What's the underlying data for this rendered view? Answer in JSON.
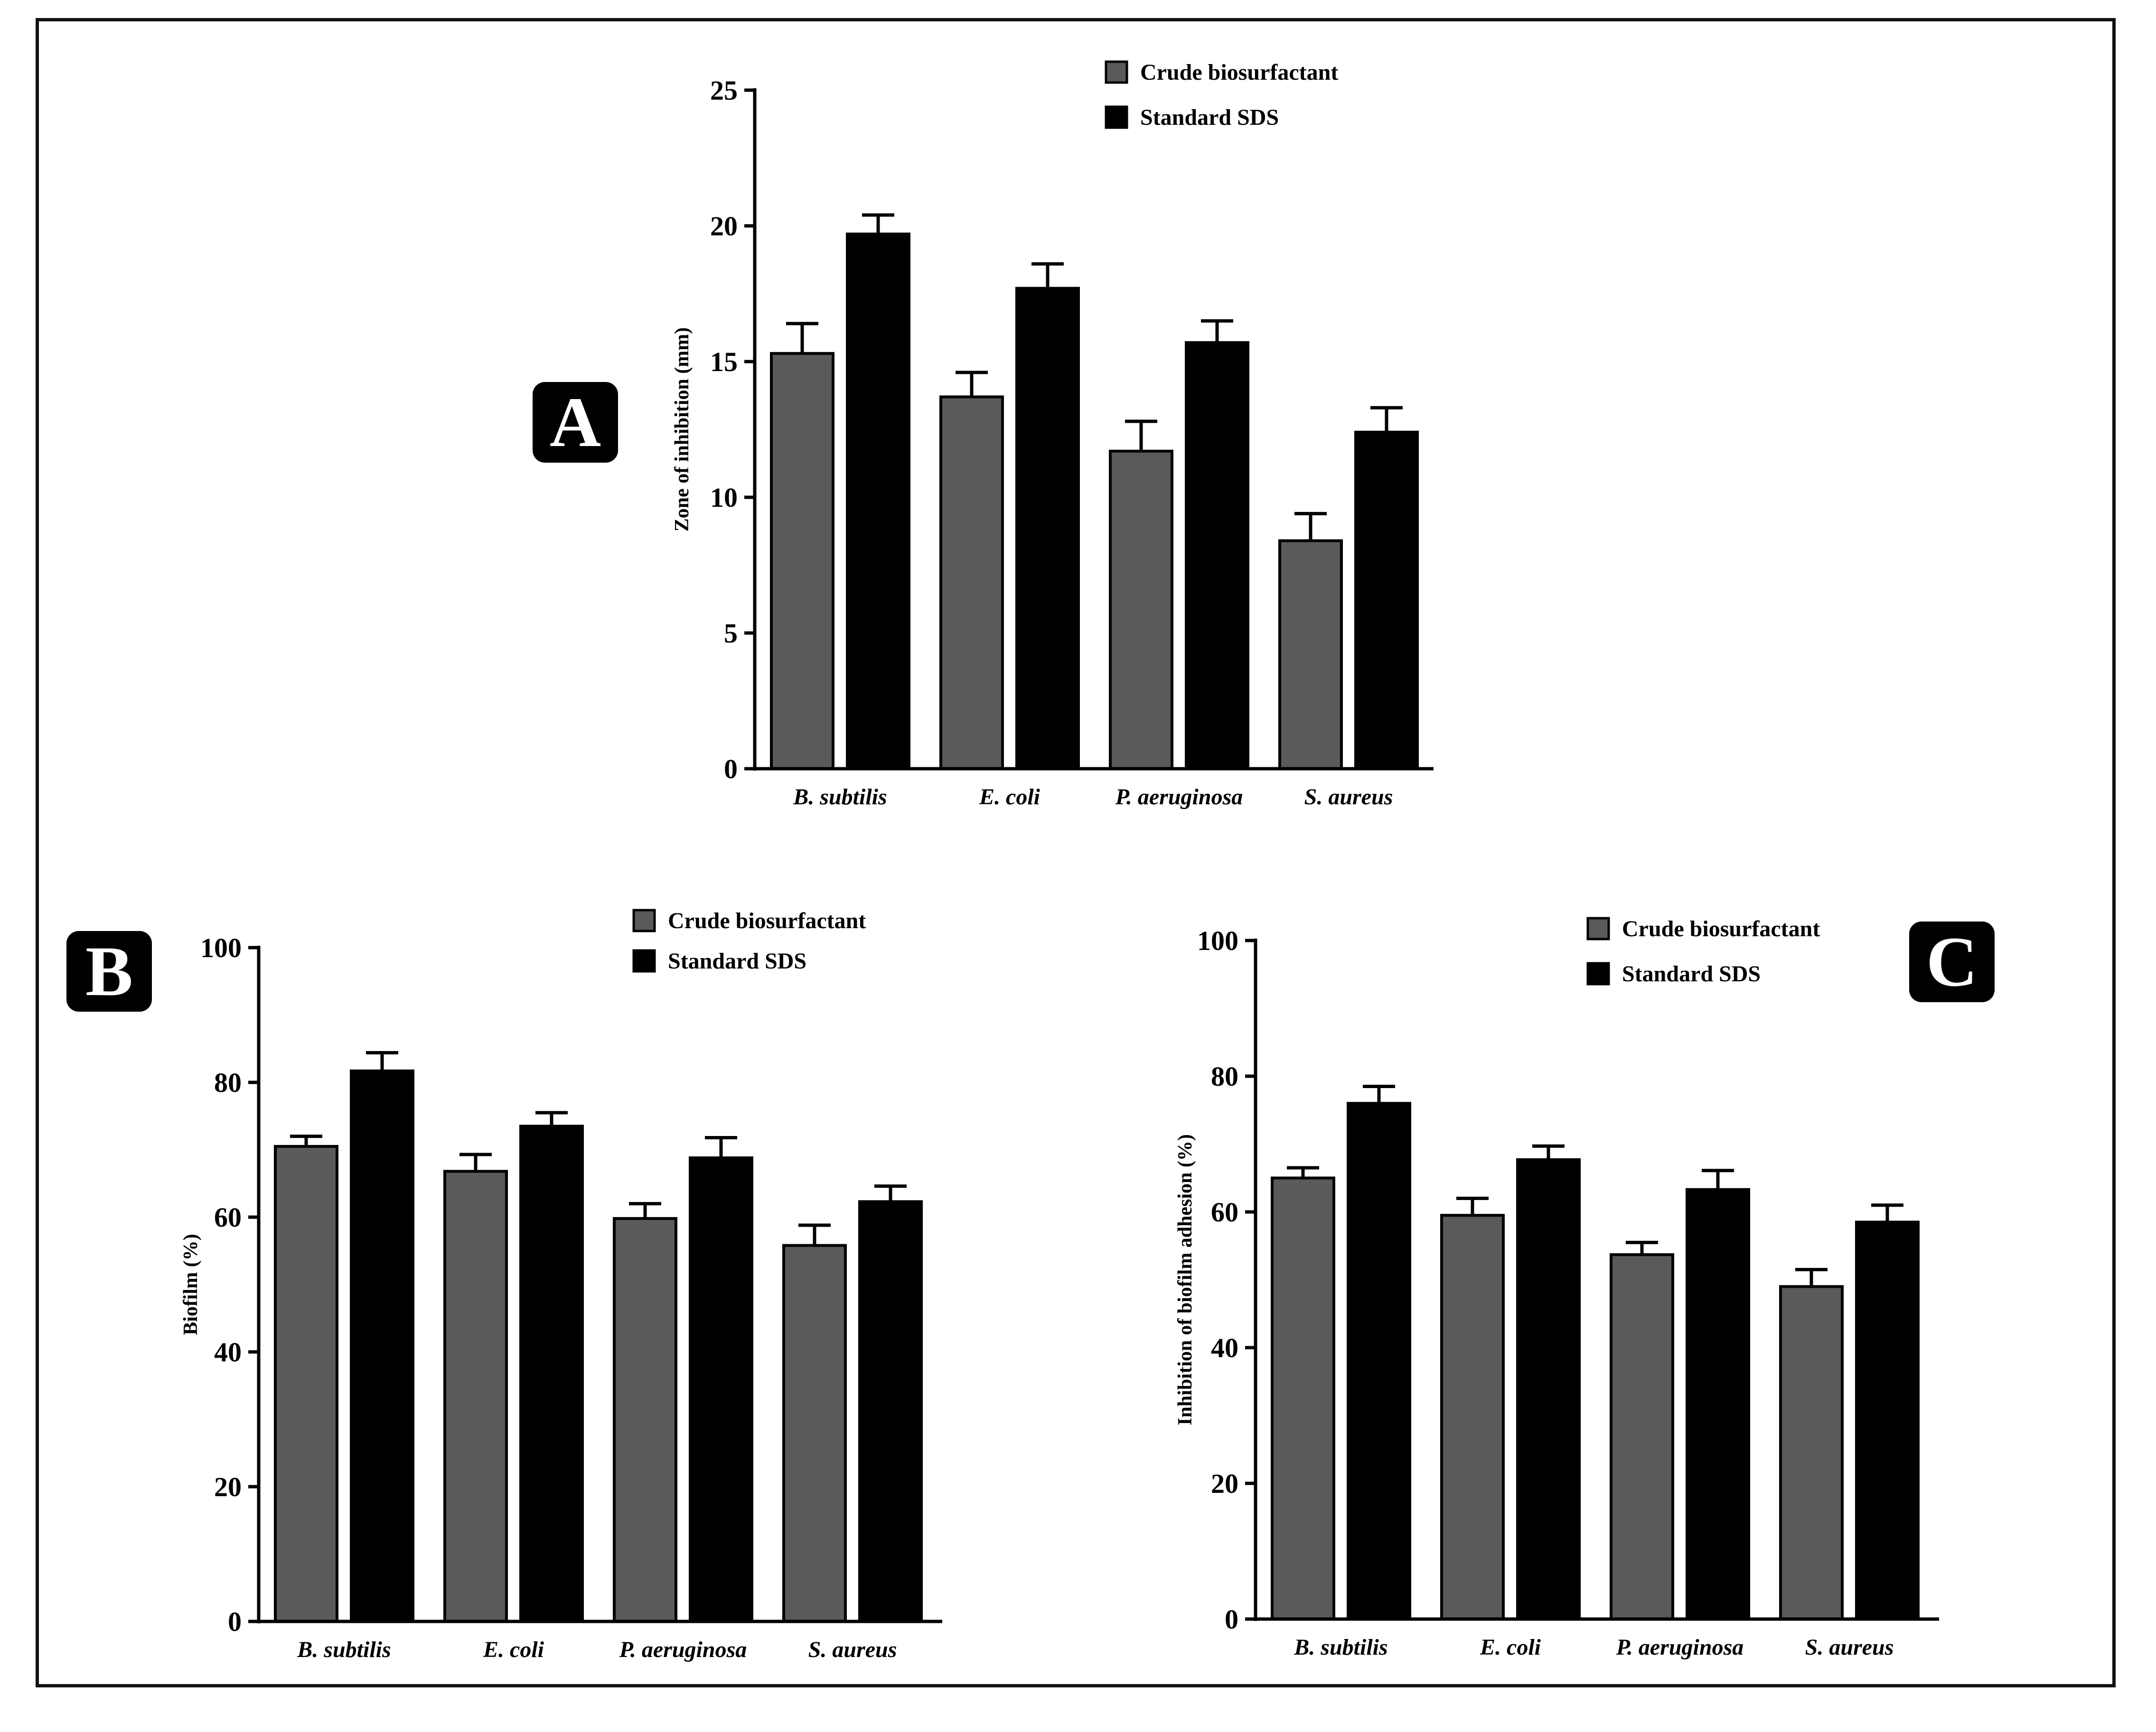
{
  "figure": {
    "panels": [
      "A",
      "B",
      "C"
    ]
  },
  "colors": {
    "crude": "#5a5a5a",
    "sds": "#000000",
    "axis": "#000000"
  },
  "chart_data": [
    {
      "panel": "A",
      "type": "bar",
      "title": "",
      "xlabel": "",
      "ylabel": "Zone of inhibition (mm)",
      "categories": [
        "B. subtilis",
        "E. coli",
        "P. aeruginosa",
        "S. aureus"
      ],
      "ylim": [
        0,
        25
      ],
      "yticks": [
        0,
        5,
        10,
        15,
        20,
        25
      ],
      "legend": "top-right",
      "series": [
        {
          "name": "Crude biosurfactant",
          "values": [
            15.3,
            13.7,
            11.7,
            8.4
          ],
          "errors": [
            1.1,
            0.9,
            1.1,
            1.0
          ]
        },
        {
          "name": "Standard SDS",
          "values": [
            19.7,
            17.7,
            15.7,
            12.4
          ],
          "errors": [
            0.7,
            0.9,
            0.8,
            0.9
          ]
        }
      ]
    },
    {
      "panel": "B",
      "type": "bar",
      "title": "",
      "xlabel": "",
      "ylabel": "Biofilm (%)",
      "categories": [
        "B. subtilis",
        "E. coli",
        "P. aeruginosa",
        "S. aureus"
      ],
      "ylim": [
        0,
        100
      ],
      "yticks": [
        0,
        20,
        40,
        60,
        80,
        100
      ],
      "legend": "top-right",
      "series": [
        {
          "name": "Crude biosurfactant",
          "values": [
            70.5,
            66.8,
            59.8,
            55.8
          ],
          "errors": [
            1.5,
            2.5,
            2.2,
            3.0
          ]
        },
        {
          "name": "Standard SDS",
          "values": [
            81.7,
            73.5,
            68.8,
            62.3
          ],
          "errors": [
            2.7,
            2.0,
            3.0,
            2.3
          ]
        }
      ]
    },
    {
      "panel": "C",
      "type": "bar",
      "title": "",
      "xlabel": "",
      "ylabel": "Inhibition of biofilm adhesion (%)",
      "categories": [
        "B. subtilis",
        "E. coli",
        "P. aeruginosa",
        "S. aureus"
      ],
      "ylim": [
        0,
        100
      ],
      "yticks": [
        0,
        20,
        40,
        60,
        80,
        100
      ],
      "legend": "top-right",
      "series": [
        {
          "name": "Crude biosurfactant",
          "values": [
            65.0,
            59.5,
            53.7,
            49.0
          ],
          "errors": [
            1.5,
            2.5,
            1.8,
            2.5
          ]
        },
        {
          "name": "Standard SDS",
          "values": [
            76.0,
            67.7,
            63.3,
            58.5
          ],
          "errors": [
            2.5,
            2.0,
            2.8,
            2.5
          ]
        }
      ]
    }
  ]
}
